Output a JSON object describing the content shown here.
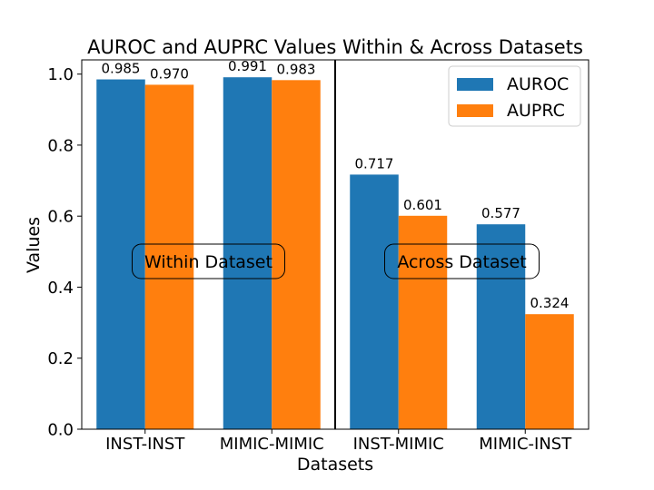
{
  "chart_data": {
    "type": "bar",
    "title": "AUROC and AUPRC Values Within & Across Datasets",
    "xlabel": "Datasets",
    "ylabel": "Values",
    "ylim": [
      0,
      1.04
    ],
    "yticks": [
      "0.0",
      "0.2",
      "0.4",
      "0.6",
      "0.8",
      "1.0"
    ],
    "ytick_values": [
      0,
      0.2,
      0.4,
      0.6,
      0.8,
      1.0
    ],
    "categories": [
      "INST-INST",
      "MIMIC-MIMIC",
      "INST-MIMIC",
      "MIMIC-INST"
    ],
    "series": [
      {
        "name": "AUROC",
        "color": "#1f77b4",
        "values": [
          0.985,
          0.991,
          0.717,
          0.577
        ],
        "labels": [
          "0.985",
          "0.991",
          "0.717",
          "0.577"
        ]
      },
      {
        "name": "AUPRC",
        "color": "#ff7f0e",
        "values": [
          0.97,
          0.983,
          0.601,
          0.324
        ],
        "labels": [
          "0.970",
          "0.983",
          "0.601",
          "0.324"
        ]
      }
    ],
    "legend_position": "top-right",
    "grid": false,
    "annotations": [
      {
        "text": "Within Dataset",
        "region": "left"
      },
      {
        "text": "Across Dataset",
        "region": "right"
      }
    ],
    "divider_between": [
      "MIMIC-MIMIC",
      "INST-MIMIC"
    ]
  }
}
